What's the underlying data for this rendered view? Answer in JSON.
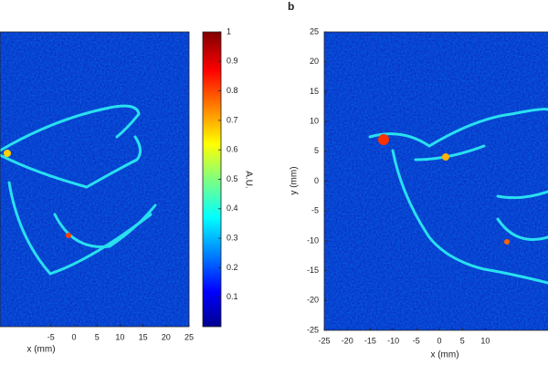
{
  "panel_label": "b",
  "chart_data": [
    {
      "type": "heatmap",
      "xlabel": "x (mm)",
      "xlim": [
        -25,
        25
      ],
      "xticks": [
        -5,
        0,
        5,
        10,
        15,
        20,
        25
      ],
      "ylim": [
        -25,
        25
      ],
      "colorbar": {
        "label": "A.U.",
        "lim": [
          0,
          1
        ],
        "ticks": [
          0.1,
          0.2,
          0.3,
          0.4,
          0.5,
          0.6,
          0.7,
          0.8,
          0.9,
          1
        ]
      }
    },
    {
      "type": "heatmap",
      "xlabel": "x (mm)",
      "ylabel": "y (mm)",
      "xlim": [
        -25,
        25
      ],
      "xticks": [
        -25,
        -20,
        -15,
        -10,
        -5,
        0,
        5,
        10
      ],
      "ylim": [
        -25,
        25
      ],
      "yticks": [
        -25,
        -20,
        -15,
        -10,
        -5,
        0,
        5,
        10,
        15,
        20,
        25
      ]
    }
  ]
}
